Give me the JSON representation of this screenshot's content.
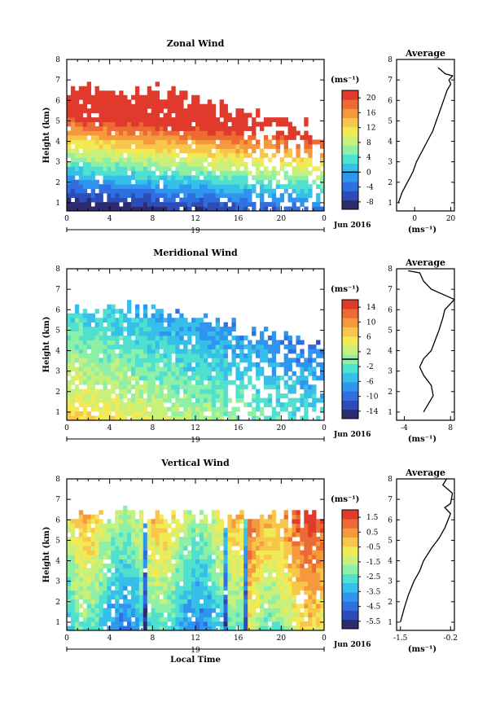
{
  "chart_data": [
    {
      "type": "heatmap",
      "title": "Zonal Wind",
      "ylabel": "Height (km)",
      "xlabel": "",
      "x_ticks": [
        "0",
        "4",
        "8",
        "12",
        "16",
        "20",
        "0"
      ],
      "y_ticks": [
        "1",
        "2",
        "3",
        "4",
        "5",
        "6",
        "7",
        "8"
      ],
      "xlim": [
        0,
        24
      ],
      "ylim": [
        0.6,
        8
      ],
      "date_label": "19",
      "month_label": "Jun 2016",
      "colorbar": {
        "unit": "(ms⁻¹)",
        "ticks": [
          "20",
          "16",
          "12",
          "8",
          "4",
          "0",
          "-4",
          "-8"
        ],
        "min": -10,
        "max": 22,
        "zero_line": 0
      },
      "profile": {
        "title": "Average",
        "xlabel": "(ms⁻¹)",
        "x_ticks": [
          "0",
          "20"
        ],
        "xlim": [
          -10,
          22
        ],
        "points": [
          [
            -9,
            1
          ],
          [
            -7,
            1.5
          ],
          [
            -4,
            2
          ],
          [
            -1,
            2.5
          ],
          [
            1,
            3
          ],
          [
            4,
            3.5
          ],
          [
            7,
            4
          ],
          [
            10,
            4.5
          ],
          [
            12,
            5
          ],
          [
            14,
            5.5
          ],
          [
            16,
            6
          ],
          [
            18,
            6.5
          ],
          [
            20,
            6.8
          ],
          [
            19,
            7
          ],
          [
            21,
            7.2
          ],
          [
            17,
            7.3
          ],
          [
            13,
            7.6
          ]
        ]
      },
      "field": {
        "base": -9,
        "gain": 7,
        "decay": 1.0,
        "tilt": 0.08,
        "cap": 21,
        "noise": 2.5,
        "top": 6.5,
        "top_tilt": 0.12,
        "sparse_hour": 17,
        "seed": 11
      }
    },
    {
      "type": "heatmap",
      "title": "Meridional Wind",
      "ylabel": "Height (km)",
      "xlabel": "",
      "x_ticks": [
        "0",
        "4",
        "8",
        "12",
        "16",
        "20",
        "0"
      ],
      "y_ticks": [
        "1",
        "2",
        "3",
        "4",
        "5",
        "6",
        "7",
        "8"
      ],
      "xlim": [
        0,
        24
      ],
      "ylim": [
        0.6,
        8
      ],
      "date_label": "19",
      "month_label": "Jun 2016",
      "colorbar": {
        "unit": "(ms⁻¹)",
        "ticks": [
          "14",
          "10",
          "6",
          "2",
          "-2",
          "-6",
          "-10",
          "-14"
        ],
        "min": -16,
        "max": 16,
        "zero_line": 0
      },
      "profile": {
        "title": "Average",
        "xlabel": "(ms⁻¹)",
        "x_ticks": [
          "-4",
          "8"
        ],
        "xlim": [
          -6,
          9
        ],
        "points": [
          [
            1,
            1
          ],
          [
            3.5,
            1.8
          ],
          [
            3,
            2.3
          ],
          [
            1,
            2.8
          ],
          [
            0,
            3.2
          ],
          [
            1,
            3.6
          ],
          [
            3,
            4
          ],
          [
            4,
            4.5
          ],
          [
            5,
            5
          ],
          [
            6,
            5.6
          ],
          [
            6.5,
            6
          ],
          [
            9,
            6.5
          ],
          [
            3,
            7
          ],
          [
            1,
            7.4
          ],
          [
            0,
            7.8
          ],
          [
            -3,
            7.9
          ]
        ]
      },
      "field": {
        "base": 6,
        "gain": -3,
        "decay": 0.6,
        "tilt": -0.1,
        "cap": 14,
        "noise": 3.5,
        "top": 6.0,
        "top_tilt": 0.1,
        "sparse_hour": 15,
        "seed": 23
      }
    },
    {
      "type": "heatmap",
      "title": "Vertical Wind",
      "ylabel": "Height (km)",
      "xlabel": "Local Time",
      "x_ticks": [
        "0",
        "4",
        "8",
        "12",
        "16",
        "20",
        "0"
      ],
      "y_ticks": [
        "1",
        "2",
        "3",
        "4",
        "5",
        "6",
        "7",
        "8"
      ],
      "xlim": [
        0,
        24
      ],
      "ylim": [
        0.6,
        8
      ],
      "date_label": "19",
      "month_label": "Jun 2016",
      "colorbar": {
        "unit": "(ms⁻¹)",
        "ticks": [
          "1.5",
          "0.5",
          "-0.5",
          "-1.5",
          "-2.5",
          "-3.5",
          "-4.5",
          "-5.5"
        ],
        "min": -6,
        "max": 2,
        "zero_line": null
      },
      "profile": {
        "title": "Average",
        "xlabel": "(ms⁻¹)",
        "x_ticks": [
          "-1.5",
          "-0.2"
        ],
        "xlim": [
          -1.6,
          -0.1
        ],
        "points": [
          [
            -1.5,
            1
          ],
          [
            -1.4,
            1.7
          ],
          [
            -1.3,
            2.3
          ],
          [
            -1.15,
            3
          ],
          [
            -1,
            3.5
          ],
          [
            -0.9,
            4
          ],
          [
            -0.7,
            4.6
          ],
          [
            -0.5,
            5.1
          ],
          [
            -0.35,
            5.6
          ],
          [
            -0.2,
            6.3
          ],
          [
            -0.35,
            6.6
          ],
          [
            -0.2,
            6.8
          ],
          [
            -0.15,
            7.3
          ],
          [
            -0.4,
            7.7
          ],
          [
            -0.3,
            8
          ]
        ]
      },
      "field": {
        "base": -3.5,
        "gain": 0,
        "decay": 1.0,
        "tilt": 0,
        "cap": 1.5,
        "noise": 1.0,
        "top": 6.2,
        "top_tilt": 0.0,
        "sparse_hour": 24,
        "seed": 37
      }
    }
  ]
}
